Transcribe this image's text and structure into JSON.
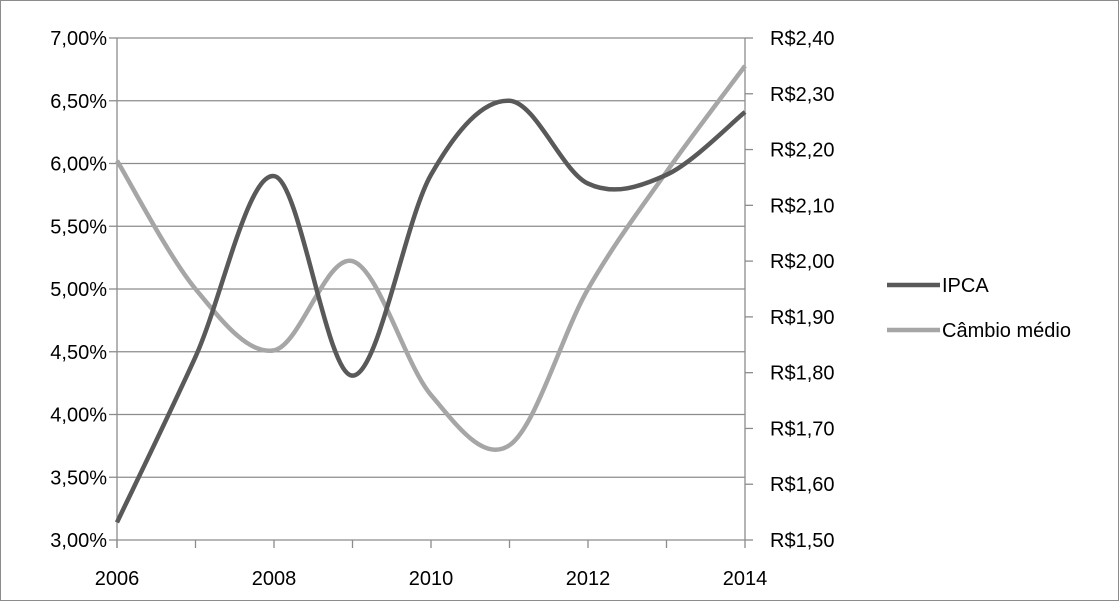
{
  "chart_data": {
    "type": "line",
    "title": "",
    "xlabel": "",
    "ylabel": "",
    "x": [
      2006,
      2007,
      2008,
      2009,
      2010,
      2011,
      2012,
      2013,
      2014
    ],
    "x_tick_labels": [
      "2006",
      "2008",
      "2010",
      "2012",
      "2014"
    ],
    "xlim": [
      2006,
      2014
    ],
    "y_left": {
      "lim": [
        3.0,
        7.0
      ],
      "tick_labels": [
        "7,00%",
        "6,50%",
        "6,00%",
        "5,50%",
        "5,00%",
        "4,50%",
        "4,00%",
        "3,50%",
        "3,00%"
      ]
    },
    "y_right": {
      "lim": [
        1.5,
        2.4
      ],
      "tick_labels": [
        "R$2,40",
        "R$2,30",
        "R$2,20",
        "R$2,10",
        "R$2,00",
        "R$1,90",
        "R$1,80",
        "R$1,70",
        "R$1,60",
        "R$1,50"
      ]
    },
    "series": [
      {
        "name": "IPCA",
        "axis": "left",
        "color": "#595959",
        "values": [
          3.14,
          4.46,
          5.9,
          4.31,
          5.91,
          6.5,
          5.84,
          5.91,
          6.41
        ]
      },
      {
        "name": "Câmbio médio",
        "axis": "right",
        "color": "#a6a6a6",
        "values": [
          2.18,
          1.95,
          1.84,
          2.0,
          1.76,
          1.67,
          1.95,
          2.16,
          2.35
        ]
      }
    ],
    "grid": true,
    "legend_position": "right"
  }
}
